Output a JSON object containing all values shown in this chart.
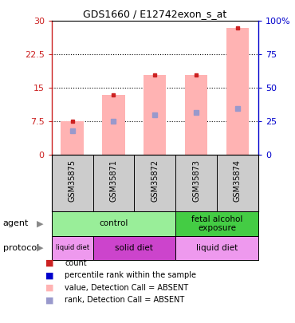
{
  "title": "GDS1660 / E12742exon_s_at",
  "samples": [
    "GSM35875",
    "GSM35871",
    "GSM35872",
    "GSM35873",
    "GSM35874"
  ],
  "bar_heights_pink": [
    7.5,
    13.5,
    18.0,
    18.0,
    28.5
  ],
  "blue_marker_pos": [
    5.5,
    7.5,
    9.0,
    9.5,
    10.5
  ],
  "red_marker_pos": [
    7.5,
    13.5,
    18.0,
    18.0,
    28.5
  ],
  "ylim_left": [
    0,
    30
  ],
  "ylim_right": [
    0,
    100
  ],
  "yticks_left": [
    0,
    7.5,
    15,
    22.5,
    30
  ],
  "yticks_right": [
    0,
    25,
    50,
    75,
    100
  ],
  "ytick_labels_right": [
    "0",
    "25",
    "50",
    "75",
    "100%"
  ],
  "bar_color": "#ffb3b3",
  "blue_marker_color": "#9999cc",
  "red_marker_color": "#cc2222",
  "agent_groups": [
    {
      "label": "control",
      "span": [
        0,
        3
      ],
      "color": "#99ee99"
    },
    {
      "label": "fetal alcohol\nexposure",
      "span": [
        3,
        5
      ],
      "color": "#44cc44"
    }
  ],
  "protocol_groups": [
    {
      "label": "liquid diet",
      "span": [
        0,
        1
      ],
      "color": "#ee99ee"
    },
    {
      "label": "solid diet",
      "span": [
        1,
        3
      ],
      "color": "#cc44cc"
    },
    {
      "label": "liquid diet",
      "span": [
        3,
        5
      ],
      "color": "#ee99ee"
    }
  ],
  "legend_items": [
    {
      "color": "#cc2222",
      "label": "count"
    },
    {
      "color": "#0000cc",
      "label": "percentile rank within the sample"
    },
    {
      "color": "#ffb3b3",
      "label": "value, Detection Call = ABSENT"
    },
    {
      "color": "#9999cc",
      "label": "rank, Detection Call = ABSENT"
    }
  ],
  "left_axis_color": "#cc2222",
  "right_axis_color": "#0000cc",
  "bg_color": "#ffffff",
  "sample_bg_color": "#cccccc"
}
